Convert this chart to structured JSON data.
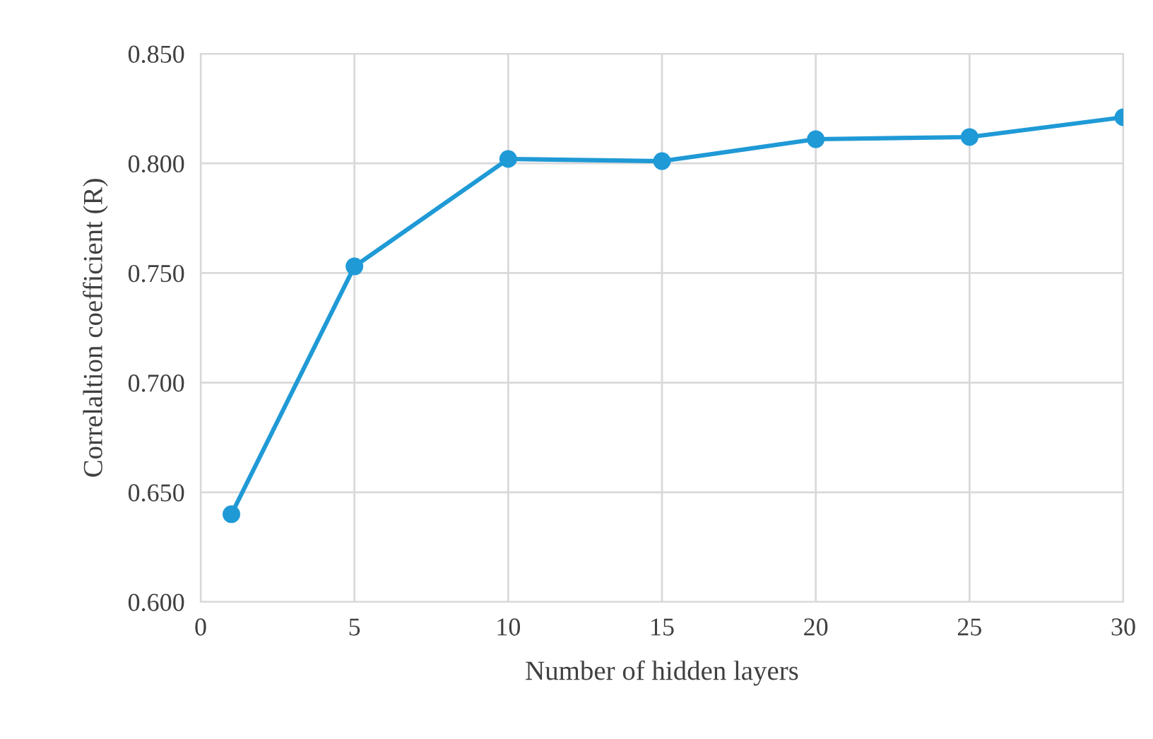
{
  "chart_data": {
    "type": "line",
    "xlabel": "Number of hidden layers",
    "ylabel": "Correlaltion coefficient (R)",
    "x": [
      1,
      5,
      10,
      15,
      20,
      25,
      30
    ],
    "series": [
      {
        "color": "#1f9ad6",
        "values": [
          0.64,
          0.753,
          0.802,
          0.801,
          0.811,
          0.812,
          0.821
        ]
      }
    ],
    "xlim": [
      0,
      30
    ],
    "xticks": [
      0,
      5,
      10,
      15,
      20,
      25,
      30
    ],
    "ylim": [
      0.6,
      0.85
    ],
    "yticks": [
      {
        "value": 0.6,
        "label": "0.600"
      },
      {
        "value": 0.65,
        "label": "0.650"
      },
      {
        "value": 0.7,
        "label": "0.700"
      },
      {
        "value": 0.75,
        "label": "0.750"
      },
      {
        "value": 0.8,
        "label": "0.800"
      },
      {
        "value": 0.85,
        "label": "0.850"
      }
    ],
    "grid": true,
    "marker": "circle",
    "line_style": "solid",
    "legend": false
  }
}
